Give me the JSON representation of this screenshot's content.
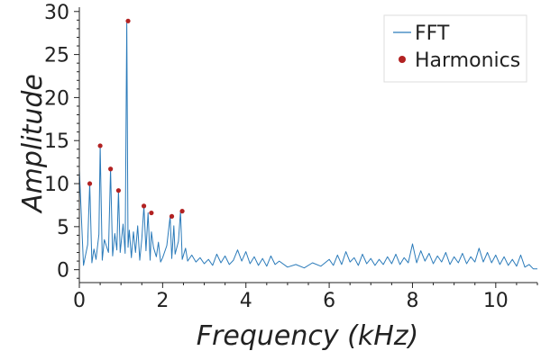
{
  "chart_data": {
    "type": "line",
    "title": "",
    "xlabel": "Frequency (kHz)",
    "ylabel": "Amplitude",
    "xlim": [
      0,
      11
    ],
    "ylim": [
      -1.5,
      30.5
    ],
    "x_ticks": [
      0,
      2,
      4,
      6,
      8,
      10
    ],
    "x_tick_labels": [
      "0",
      "2",
      "4",
      "6",
      "8",
      "10"
    ],
    "y_ticks": [
      0,
      5,
      10,
      15,
      20,
      25,
      30
    ],
    "y_tick_labels": [
      "0",
      "5",
      "10",
      "15",
      "20",
      "25",
      "30"
    ],
    "grid": false,
    "legend_position": "top-right",
    "series": [
      {
        "name": "FFT",
        "style": "line",
        "color": "#2b7bba",
        "x": [
          0.0,
          0.1,
          0.2,
          0.25,
          0.3,
          0.35,
          0.4,
          0.47,
          0.5,
          0.55,
          0.6,
          0.7,
          0.75,
          0.8,
          0.85,
          0.9,
          0.94,
          0.98,
          1.05,
          1.1,
          1.14,
          1.17,
          1.2,
          1.25,
          1.3,
          1.35,
          1.4,
          1.45,
          1.5,
          1.55,
          1.6,
          1.65,
          1.7,
          1.73,
          1.78,
          1.85,
          1.9,
          1.95,
          2.0,
          2.1,
          2.18,
          2.22,
          2.27,
          2.3,
          2.38,
          2.43,
          2.47,
          2.55,
          2.6,
          2.7,
          2.8,
          2.9,
          3.0,
          3.1,
          3.2,
          3.3,
          3.4,
          3.5,
          3.6,
          3.7,
          3.8,
          3.9,
          4.0,
          4.1,
          4.2,
          4.3,
          4.4,
          4.5,
          4.6,
          4.7,
          4.8,
          5.0,
          5.2,
          5.4,
          5.6,
          5.8,
          6.0,
          6.1,
          6.2,
          6.3,
          6.4,
          6.5,
          6.6,
          6.7,
          6.8,
          6.9,
          7.0,
          7.1,
          7.2,
          7.3,
          7.4,
          7.5,
          7.6,
          7.7,
          7.8,
          7.9,
          8.0,
          8.1,
          8.2,
          8.3,
          8.4,
          8.5,
          8.6,
          8.7,
          8.8,
          8.9,
          9.0,
          9.1,
          9.2,
          9.3,
          9.4,
          9.5,
          9.6,
          9.7,
          9.8,
          9.9,
          10.0,
          10.1,
          10.2,
          10.3,
          10.4,
          10.5,
          10.6,
          10.7,
          10.8,
          10.9,
          11.0
        ],
        "y": [
          11.6,
          0.5,
          2.9,
          10.0,
          0.8,
          2.4,
          1.2,
          4.1,
          14.4,
          1.1,
          3.5,
          2.0,
          11.7,
          1.6,
          4.2,
          2.3,
          9.2,
          2.0,
          5.3,
          1.9,
          28.9,
          2.6,
          4.6,
          1.4,
          4.4,
          2.0,
          5.1,
          1.1,
          3.6,
          7.4,
          2.2,
          6.6,
          1.1,
          4.4,
          2.6,
          1.5,
          3.2,
          0.9,
          1.4,
          2.8,
          6.2,
          1.3,
          5.1,
          1.8,
          3.3,
          6.8,
          1.2,
          2.5,
          1.0,
          1.7,
          0.9,
          1.4,
          0.7,
          1.2,
          0.5,
          1.8,
          0.8,
          1.6,
          0.6,
          1.1,
          2.3,
          1.0,
          2.1,
          0.7,
          1.5,
          0.5,
          1.3,
          0.4,
          1.6,
          0.6,
          1.0,
          0.3,
          0.6,
          0.2,
          0.8,
          0.4,
          1.2,
          0.5,
          1.7,
          0.6,
          2.1,
          0.9,
          1.4,
          0.5,
          1.8,
          0.7,
          1.3,
          0.5,
          1.2,
          0.6,
          1.5,
          0.7,
          1.8,
          0.6,
          1.4,
          0.8,
          3.0,
          0.8,
          2.2,
          1.0,
          1.9,
          0.7,
          1.6,
          0.9,
          2.0,
          0.6,
          1.5,
          0.8,
          1.9,
          0.7,
          1.5,
          0.9,
          2.5,
          0.9,
          2.0,
          0.8,
          1.7,
          0.6,
          1.5,
          0.5,
          1.2,
          0.4,
          1.7,
          0.3,
          0.6,
          0.1,
          0.1
        ]
      },
      {
        "name": "Harmonics",
        "style": "markers",
        "color": "#b22222",
        "x": [
          0.25,
          0.5,
          0.75,
          0.94,
          1.17,
          1.55,
          1.73,
          2.22,
          2.47
        ],
        "y": [
          10.0,
          14.4,
          11.7,
          9.2,
          28.9,
          7.4,
          6.6,
          6.2,
          6.8
        ]
      }
    ]
  }
}
